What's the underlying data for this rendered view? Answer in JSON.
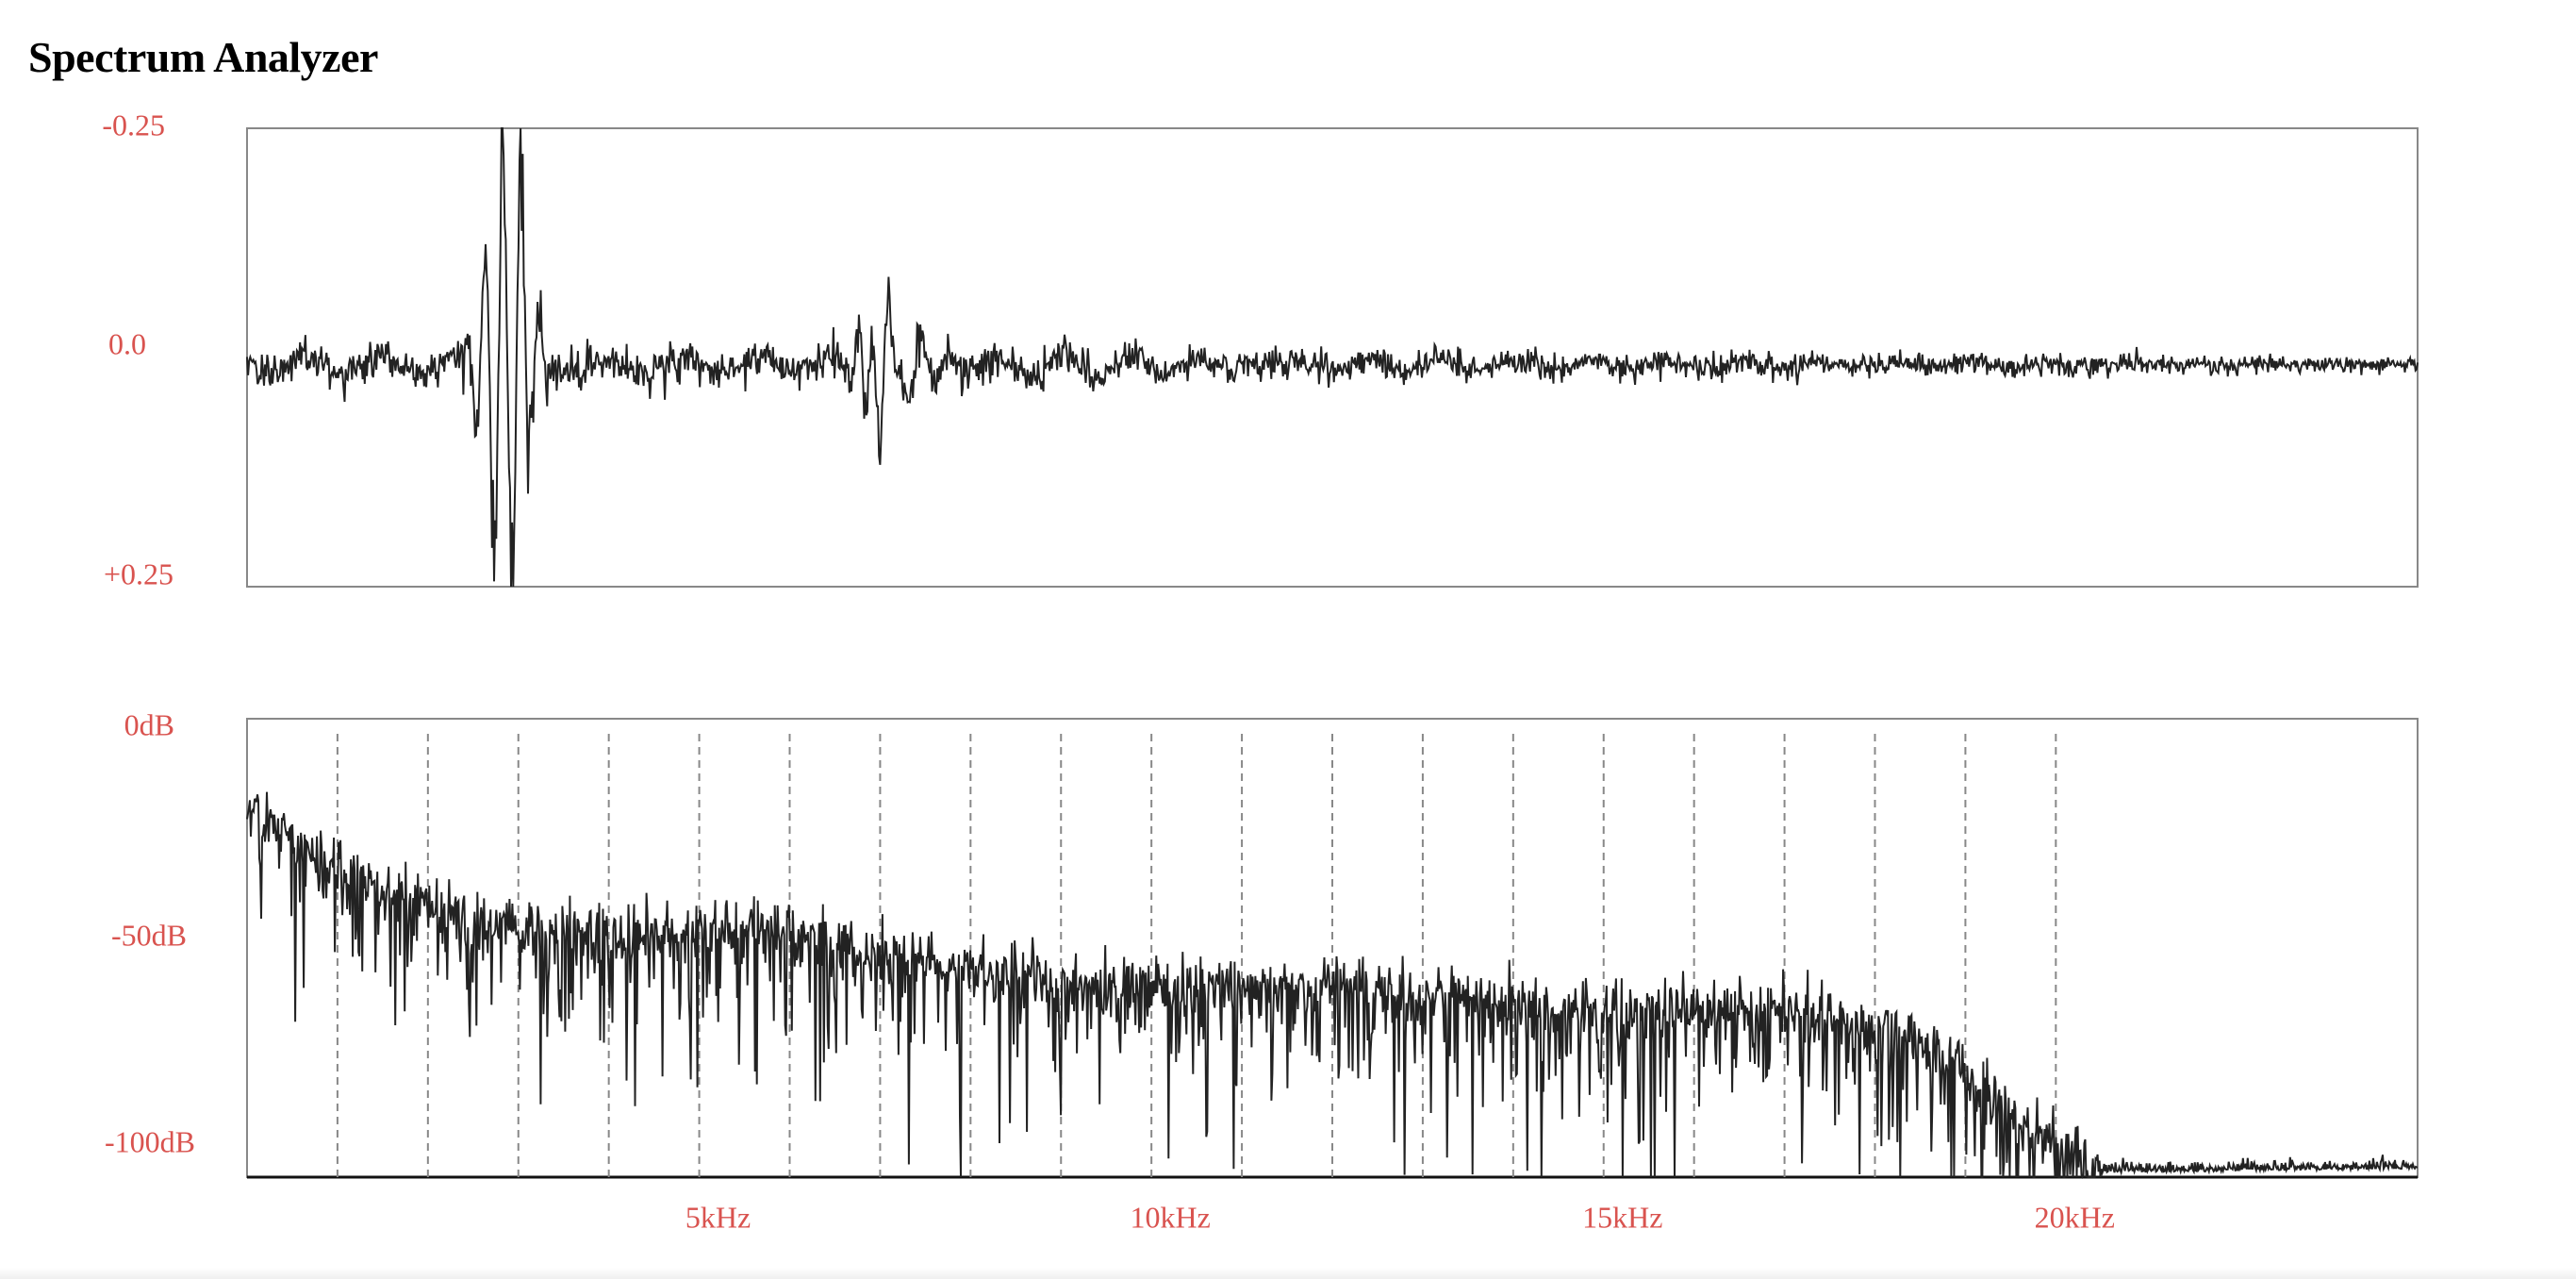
{
  "page": {
    "title": "Spectrum Analyzer"
  },
  "colors": {
    "label": "#d9534f",
    "trace": "#222222",
    "frame": "#888888",
    "grid": "#888888"
  },
  "chart_data": [
    {
      "type": "line",
      "ytick_labels": [
        "-0.25",
        "0.0",
        "+0.25"
      ],
      "yticks": [
        -0.25,
        0.0,
        0.25
      ],
      "ylim": [
        -0.25,
        0.25
      ],
      "y_inverted": true,
      "grid": false,
      "samples": 2048,
      "features": {
        "baseline_noise": 0.012,
        "transients": [
          {
            "at": 0.12,
            "peak": 0.25,
            "width": 0.012
          },
          {
            "at": 0.29,
            "peak": 0.06,
            "width": 0.01
          },
          {
            "at": 0.3,
            "peak": 0.04,
            "width": 0.02
          }
        ]
      }
    },
    {
      "type": "line",
      "ytick_labels": [
        "0dB",
        "-50dB",
        "-100dB"
      ],
      "yticks": [
        0,
        -50,
        -100
      ],
      "ylim": [
        -110,
        0
      ],
      "xlim": [
        0,
        24000
      ],
      "xtick_labels": [
        "5kHz",
        "10kHz",
        "15kHz",
        "20kHz"
      ],
      "xticks": [
        5000,
        10000,
        15000,
        20000
      ],
      "grid_x": [
        1000,
        2000,
        3000,
        4000,
        5000,
        6000,
        7000,
        8000,
        9000,
        10000,
        11000,
        12000,
        13000,
        14000,
        15000,
        16000,
        17000,
        18000,
        19000,
        20000
      ],
      "grid": true,
      "envelope_db": [
        [
          0,
          -20
        ],
        [
          1000,
          -36
        ],
        [
          2000,
          -44
        ],
        [
          3000,
          -50
        ],
        [
          4000,
          -52
        ],
        [
          5000,
          -50
        ],
        [
          6000,
          -50
        ],
        [
          7000,
          -56
        ],
        [
          8000,
          -60
        ],
        [
          10000,
          -64
        ],
        [
          12000,
          -64
        ],
        [
          13000,
          -66
        ],
        [
          15000,
          -70
        ],
        [
          17000,
          -69
        ],
        [
          18500,
          -76
        ],
        [
          19500,
          -95
        ],
        [
          20500,
          -109
        ],
        [
          24000,
          -108
        ]
      ]
    }
  ]
}
